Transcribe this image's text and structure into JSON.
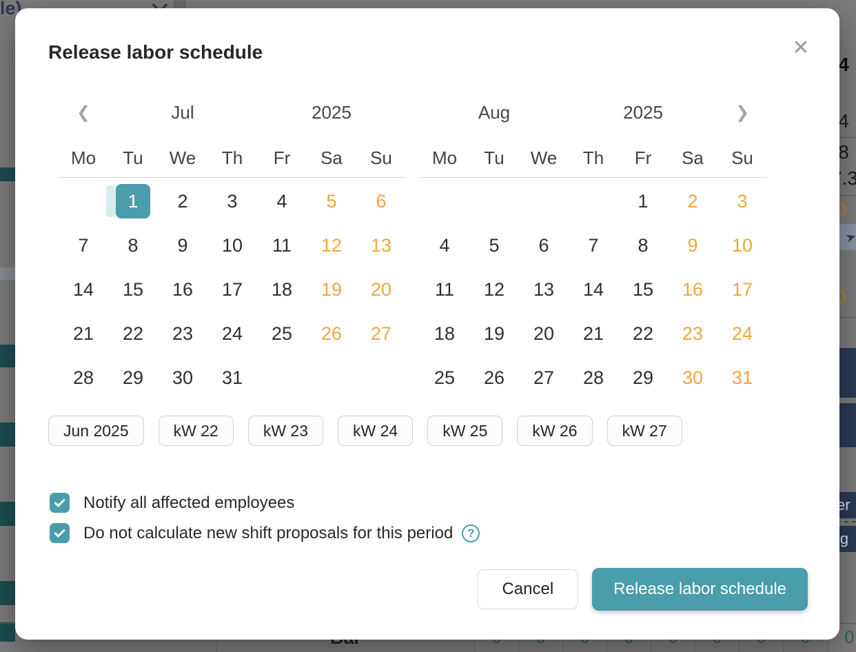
{
  "colors": {
    "accent": "#4a9dab",
    "weekend_orange": "#efa73d",
    "range_strip": "#dbecee",
    "backdrop": "#7d7d7d",
    "bg_navy": "#2c3a56",
    "bg_green": "#2e6b32",
    "bg_orange": "#bd861f",
    "bg_teal_bar": "#1d4f52"
  },
  "dialog": {
    "title": "Release labor schedule",
    "close_icon": "✕"
  },
  "calendar": {
    "prev_icon": "❮",
    "next_icon": "❯",
    "weekdays": [
      "Mo",
      "Tu",
      "We",
      "Th",
      "Fr",
      "Sa",
      "Su"
    ],
    "months": [
      {
        "name": "Jul",
        "year": "2025",
        "selected_day": "1",
        "weeks": [
          [
            "",
            "1",
            "2",
            "3",
            "4",
            "5",
            "6"
          ],
          [
            "7",
            "8",
            "9",
            "10",
            "11",
            "12",
            "13"
          ],
          [
            "14",
            "15",
            "16",
            "17",
            "18",
            "19",
            "20"
          ],
          [
            "21",
            "22",
            "23",
            "24",
            "25",
            "26",
            "27"
          ],
          [
            "28",
            "29",
            "30",
            "31",
            "",
            "",
            ""
          ]
        ]
      },
      {
        "name": "Aug",
        "year": "2025",
        "selected_day": "",
        "weeks": [
          [
            "",
            "",
            "",
            "",
            "1",
            "2",
            "3"
          ],
          [
            "4",
            "5",
            "6",
            "7",
            "8",
            "9",
            "10"
          ],
          [
            "11",
            "12",
            "13",
            "14",
            "15",
            "16",
            "17"
          ],
          [
            "18",
            "19",
            "20",
            "21",
            "22",
            "23",
            "24"
          ],
          [
            "25",
            "26",
            "27",
            "28",
            "29",
            "30",
            "31"
          ]
        ]
      }
    ]
  },
  "week_chips": [
    "Jun 2025",
    "kW 22",
    "kW 23",
    "kW 24",
    "kW 25",
    "kW 26",
    "kW 27"
  ],
  "checkboxes": [
    {
      "label": "Notify all affected employees",
      "checked": true,
      "help": false
    },
    {
      "label": "Do not calculate new shift proposals for this period",
      "checked": true,
      "help": true
    }
  ],
  "help_icon": "?",
  "footer": {
    "cancel_label": "Cancel",
    "submit_label": "Release labor schedule"
  },
  "background": {
    "top_left_fragment": "le)",
    "right_edge_values": [
      {
        "text": "4",
        "style": "bold"
      },
      {
        "text": "4",
        "style": ""
      },
      {
        "text": "8",
        "style": ""
      },
      {
        "text": "7.3",
        "style": ""
      },
      {
        "text": "0.",
        "style": "orange"
      },
      {
        "text": "0.",
        "style": "orange"
      }
    ],
    "right_edge_buttons": [
      "er",
      "lg"
    ],
    "bottom_row_label": "Bar",
    "bottom_row_values": [
      "0",
      "0",
      "0",
      "0",
      "0",
      "0",
      "0",
      "0",
      "0"
    ]
  }
}
